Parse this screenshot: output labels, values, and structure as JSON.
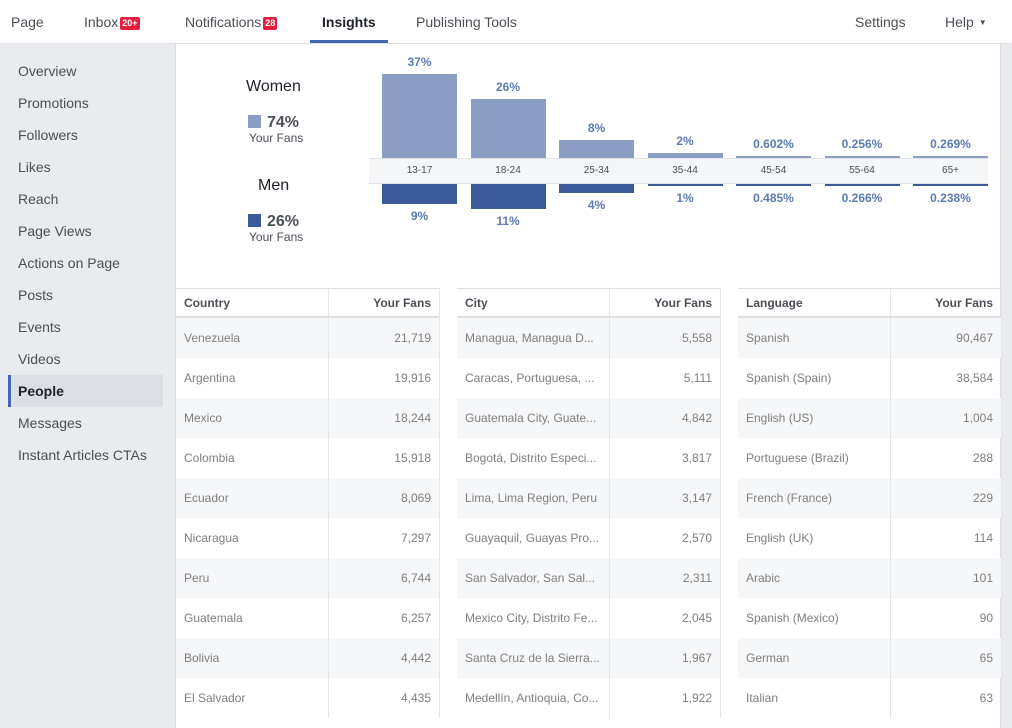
{
  "nav": {
    "page": "Page",
    "inbox": "Inbox",
    "inbox_badge": "20+",
    "notifications": "Notifications",
    "notifications_badge": "28",
    "insights": "Insights",
    "publishing_tools": "Publishing Tools",
    "settings": "Settings",
    "help": "Help"
  },
  "sidebar": {
    "items": [
      {
        "label": "Overview"
      },
      {
        "label": "Promotions"
      },
      {
        "label": "Followers"
      },
      {
        "label": "Likes"
      },
      {
        "label": "Reach"
      },
      {
        "label": "Page Views"
      },
      {
        "label": "Actions on Page"
      },
      {
        "label": "Posts"
      },
      {
        "label": "Events"
      },
      {
        "label": "Videos"
      },
      {
        "label": "People"
      },
      {
        "label": "Messages"
      },
      {
        "label": "Instant Articles CTAs"
      }
    ],
    "active": "People"
  },
  "gender": {
    "women_label": "Women",
    "women_pct": "74%",
    "women_sub": "Your Fans",
    "men_label": "Men",
    "men_pct": "26%",
    "men_sub": "Your Fans"
  },
  "colors": {
    "women": "#8b9dc3",
    "men": "#3b5998",
    "accent": "#4267b2",
    "badge": "#e41e3f"
  },
  "chart_data": {
    "type": "bar",
    "categories": [
      "13-17",
      "18-24",
      "25-34",
      "35-44",
      "45-54",
      "55-64",
      "65+"
    ],
    "series": [
      {
        "name": "Women",
        "values": [
          37,
          26,
          8,
          2,
          0.602,
          0.256,
          0.269
        ],
        "labels": [
          "37%",
          "26%",
          "8%",
          "2%",
          "0.602%",
          "0.256%",
          "0.269%"
        ]
      },
      {
        "name": "Men",
        "values": [
          9,
          11,
          4,
          1,
          0.485,
          0.266,
          0.238
        ],
        "labels": [
          "9%",
          "11%",
          "4%",
          "1%",
          "0.485%",
          "0.266%",
          "0.238%"
        ]
      }
    ]
  },
  "tables": {
    "country": {
      "header_name": "Country",
      "header_fans": "Your Fans",
      "rows": [
        {
          "name": "Venezuela",
          "fans": "21,719"
        },
        {
          "name": "Argentina",
          "fans": "19,916"
        },
        {
          "name": "Mexico",
          "fans": "18,244"
        },
        {
          "name": "Colombia",
          "fans": "15,918"
        },
        {
          "name": "Ecuador",
          "fans": "8,069"
        },
        {
          "name": "Nicaragua",
          "fans": "7,297"
        },
        {
          "name": "Peru",
          "fans": "6,744"
        },
        {
          "name": "Guatemala",
          "fans": "6,257"
        },
        {
          "name": "Bolivia",
          "fans": "4,442"
        },
        {
          "name": "El Salvador",
          "fans": "4,435"
        }
      ]
    },
    "city": {
      "header_name": "City",
      "header_fans": "Your Fans",
      "rows": [
        {
          "name": "Managua, Managua D...",
          "fans": "5,558"
        },
        {
          "name": "Caracas, Portuguesa, ...",
          "fans": "5,111"
        },
        {
          "name": "Guatemala City, Guate...",
          "fans": "4,842"
        },
        {
          "name": "Bogotá, Distrito Especi...",
          "fans": "3,817"
        },
        {
          "name": "Lima, Lima Region, Peru",
          "fans": "3,147"
        },
        {
          "name": "Guayaquil, Guayas Pro...",
          "fans": "2,570"
        },
        {
          "name": "San Salvador, San Sal...",
          "fans": "2,311"
        },
        {
          "name": "Mexico City, Distrito Fe...",
          "fans": "2,045"
        },
        {
          "name": "Santa Cruz de la Sierra...",
          "fans": "1,967"
        },
        {
          "name": "Medellín, Antioquia, Co...",
          "fans": "1,922"
        }
      ]
    },
    "language": {
      "header_name": "Language",
      "header_fans": "Your Fans",
      "rows": [
        {
          "name": "Spanish",
          "fans": "90,467"
        },
        {
          "name": "Spanish (Spain)",
          "fans": "38,584"
        },
        {
          "name": "English (US)",
          "fans": "1,004"
        },
        {
          "name": "Portuguese (Brazil)",
          "fans": "288"
        },
        {
          "name": "French (France)",
          "fans": "229"
        },
        {
          "name": "English (UK)",
          "fans": "114"
        },
        {
          "name": "Arabic",
          "fans": "101"
        },
        {
          "name": "Spanish (Mexico)",
          "fans": "90"
        },
        {
          "name": "German",
          "fans": "65"
        },
        {
          "name": "Italian",
          "fans": "63"
        }
      ]
    }
  }
}
